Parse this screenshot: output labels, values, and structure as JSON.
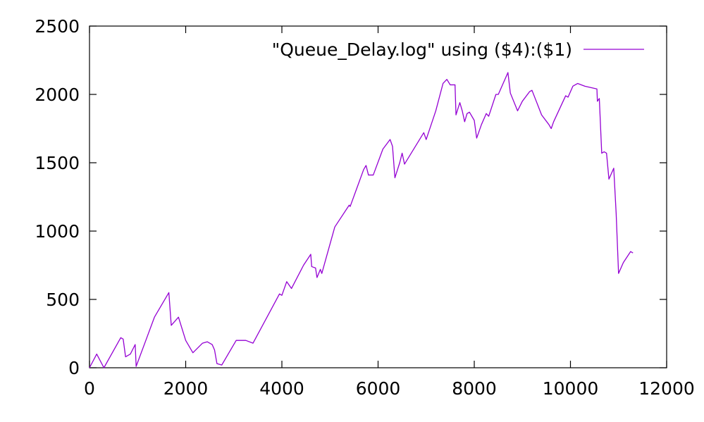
{
  "chart_data": {
    "type": "line",
    "title": "",
    "xlabel": "",
    "ylabel": "",
    "xlim": [
      0,
      12000
    ],
    "ylim": [
      0,
      2500
    ],
    "xticks": [
      0,
      2000,
      4000,
      6000,
      8000,
      10000,
      12000
    ],
    "yticks": [
      0,
      500,
      1000,
      1500,
      2000,
      2500
    ],
    "xtick_labels": [
      "0",
      "2000",
      "4000",
      "6000",
      "8000",
      "10000",
      "12000"
    ],
    "ytick_labels": [
      "0",
      "500",
      "1000",
      "1500",
      "2000",
      "2500"
    ],
    "grid": false,
    "legend_position": "top-right",
    "series": [
      {
        "name": "\"Queue_Delay.log\" using ($4):($1)",
        "color": "#9400d3",
        "points": [
          [
            0,
            0
          ],
          [
            150,
            100
          ],
          [
            300,
            0
          ],
          [
            650,
            220
          ],
          [
            700,
            210
          ],
          [
            750,
            80
          ],
          [
            850,
            100
          ],
          [
            950,
            170
          ],
          [
            970,
            10
          ],
          [
            1150,
            180
          ],
          [
            1350,
            370
          ],
          [
            1650,
            550
          ],
          [
            1700,
            310
          ],
          [
            1850,
            370
          ],
          [
            2000,
            200
          ],
          [
            2150,
            110
          ],
          [
            2350,
            180
          ],
          [
            2450,
            190
          ],
          [
            2550,
            170
          ],
          [
            2600,
            130
          ],
          [
            2650,
            30
          ],
          [
            2750,
            20
          ],
          [
            3050,
            200
          ],
          [
            3250,
            200
          ],
          [
            3400,
            180
          ],
          [
            3950,
            540
          ],
          [
            4000,
            530
          ],
          [
            4100,
            630
          ],
          [
            4200,
            580
          ],
          [
            4450,
            750
          ],
          [
            4600,
            830
          ],
          [
            4620,
            740
          ],
          [
            4700,
            730
          ],
          [
            4730,
            660
          ],
          [
            4800,
            720
          ],
          [
            4830,
            690
          ],
          [
            5100,
            1030
          ],
          [
            5400,
            1190
          ],
          [
            5420,
            1180
          ],
          [
            5700,
            1450
          ],
          [
            5750,
            1480
          ],
          [
            5800,
            1410
          ],
          [
            5900,
            1410
          ],
          [
            6100,
            1600
          ],
          [
            6250,
            1670
          ],
          [
            6300,
            1620
          ],
          [
            6350,
            1390
          ],
          [
            6450,
            1500
          ],
          [
            6500,
            1570
          ],
          [
            6550,
            1490
          ],
          [
            6950,
            1720
          ],
          [
            7000,
            1670
          ],
          [
            7200,
            1880
          ],
          [
            7350,
            2080
          ],
          [
            7430,
            2110
          ],
          [
            7500,
            2070
          ],
          [
            7600,
            2070
          ],
          [
            7620,
            1850
          ],
          [
            7700,
            1940
          ],
          [
            7750,
            1880
          ],
          [
            7800,
            1800
          ],
          [
            7850,
            1860
          ],
          [
            7900,
            1870
          ],
          [
            8000,
            1810
          ],
          [
            8050,
            1680
          ],
          [
            8150,
            1780
          ],
          [
            8250,
            1860
          ],
          [
            8300,
            1840
          ],
          [
            8450,
            2000
          ],
          [
            8500,
            2000
          ],
          [
            8700,
            2160
          ],
          [
            8750,
            2010
          ],
          [
            8900,
            1880
          ],
          [
            9000,
            1950
          ],
          [
            9150,
            2020
          ],
          [
            9200,
            2030
          ],
          [
            9400,
            1850
          ],
          [
            9550,
            1780
          ],
          [
            9600,
            1750
          ],
          [
            9650,
            1800
          ],
          [
            9900,
            1990
          ],
          [
            9950,
            1980
          ],
          [
            10050,
            2060
          ],
          [
            10150,
            2080
          ],
          [
            10300,
            2060
          ],
          [
            10550,
            2040
          ],
          [
            10560,
            1950
          ],
          [
            10600,
            1970
          ],
          [
            10650,
            1570
          ],
          [
            10700,
            1580
          ],
          [
            10750,
            1570
          ],
          [
            10800,
            1380
          ],
          [
            10900,
            1460
          ],
          [
            10950,
            1130
          ],
          [
            11000,
            690
          ],
          [
            11100,
            770
          ],
          [
            11250,
            850
          ],
          [
            11300,
            840
          ]
        ]
      }
    ]
  }
}
